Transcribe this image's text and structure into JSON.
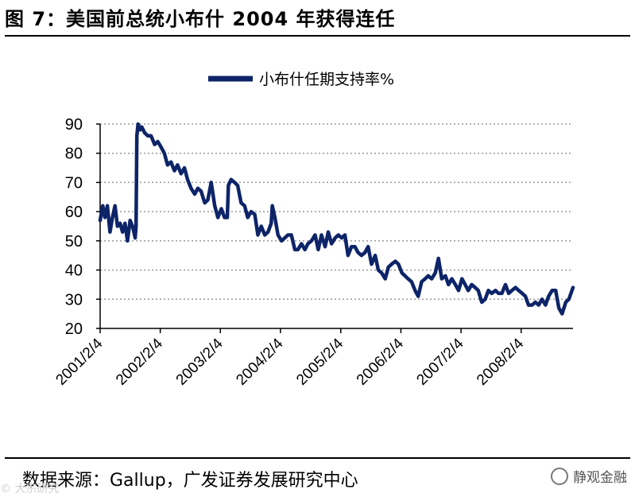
{
  "figure": {
    "title": "图 7：美国前总统小布什 2004 年获得连任",
    "source": "数据来源：Gallup，广发证券发展研究中心",
    "watermark": "静观金融",
    "corner_watermark": "© 大宗研究"
  },
  "colors": {
    "line": "#0d2468",
    "grid": "#9a9a9a",
    "axis": "#000000"
  },
  "chart_data": {
    "type": "line",
    "title": "",
    "xlabel": "",
    "ylabel": "",
    "ylim": [
      20,
      90
    ],
    "yticks": [
      20,
      30,
      40,
      50,
      60,
      70,
      80,
      90
    ],
    "xlim": [
      "2001/2/4",
      "2008/12/15"
    ],
    "xticks": [
      "2001/2/4",
      "2002/2/4",
      "2003/2/4",
      "2004/2/4",
      "2005/2/4",
      "2006/2/4",
      "2007/2/4",
      "2008/2/4"
    ],
    "grid": "horizontal dotted",
    "legend": {
      "position": "top-center",
      "entries": [
        "小布什任期支持率%"
      ]
    },
    "series": [
      {
        "name": "小布什任期支持率%",
        "points": [
          [
            "2001/2/4",
            57
          ],
          [
            "2001/2/20",
            62
          ],
          [
            "2001/3/5",
            58
          ],
          [
            "2001/3/20",
            62
          ],
          [
            "2001/4/5",
            53
          ],
          [
            "2001/4/20",
            58
          ],
          [
            "2001/5/5",
            62
          ],
          [
            "2001/5/20",
            55
          ],
          [
            "2001/6/5",
            56
          ],
          [
            "2001/6/20",
            53
          ],
          [
            "2001/7/5",
            56
          ],
          [
            "2001/7/20",
            50
          ],
          [
            "2001/8/5",
            57
          ],
          [
            "2001/8/20",
            55
          ],
          [
            "2001/9/5",
            51
          ],
          [
            "2001/9/10",
            55
          ],
          [
            "2001/9/15",
            86
          ],
          [
            "2001/9/22",
            90
          ],
          [
            "2001/10/5",
            88
          ],
          [
            "2001/10/15",
            89
          ],
          [
            "2001/11/1",
            87
          ],
          [
            "2001/11/20",
            86
          ],
          [
            "2001/12/10",
            86
          ],
          [
            "2002/1/1",
            83
          ],
          [
            "2002/1/20",
            84
          ],
          [
            "2002/2/10",
            82
          ],
          [
            "2002/3/1",
            80
          ],
          [
            "2002/3/20",
            76
          ],
          [
            "2002/4/10",
            77
          ],
          [
            "2002/5/1",
            74
          ],
          [
            "2002/5/20",
            76
          ],
          [
            "2002/6/10",
            73
          ],
          [
            "2002/7/1",
            75
          ],
          [
            "2002/7/20",
            71
          ],
          [
            "2002/8/10",
            68
          ],
          [
            "2002/9/1",
            66
          ],
          [
            "2002/9/20",
            68
          ],
          [
            "2002/10/10",
            67
          ],
          [
            "2002/11/1",
            63
          ],
          [
            "2002/11/20",
            64
          ],
          [
            "2002/12/10",
            70
          ],
          [
            "2003/1/1",
            62
          ],
          [
            "2003/1/20",
            58
          ],
          [
            "2003/2/10",
            61
          ],
          [
            "2003/3/1",
            58
          ],
          [
            "2003/3/18",
            58
          ],
          [
            "2003/3/25",
            69
          ],
          [
            "2003/4/10",
            71
          ],
          [
            "2003/5/1",
            70
          ],
          [
            "2003/5/20",
            69
          ],
          [
            "2003/6/10",
            63
          ],
          [
            "2003/7/1",
            62
          ],
          [
            "2003/7/20",
            58
          ],
          [
            "2003/8/10",
            60
          ],
          [
            "2003/9/1",
            59
          ],
          [
            "2003/9/20",
            52
          ],
          [
            "2003/10/10",
            55
          ],
          [
            "2003/11/1",
            52
          ],
          [
            "2003/11/20",
            53
          ],
          [
            "2003/12/10",
            56
          ],
          [
            "2003/12/16",
            62
          ],
          [
            "2004/1/1",
            58
          ],
          [
            "2004/1/20",
            52
          ],
          [
            "2004/2/10",
            50
          ],
          [
            "2004/3/1",
            51
          ],
          [
            "2004/3/20",
            52
          ],
          [
            "2004/4/10",
            52
          ],
          [
            "2004/5/1",
            47
          ],
          [
            "2004/5/20",
            47
          ],
          [
            "2004/6/10",
            49
          ],
          [
            "2004/7/1",
            47
          ],
          [
            "2004/7/20",
            49
          ],
          [
            "2004/8/10",
            50
          ],
          [
            "2004/9/1",
            52
          ],
          [
            "2004/9/20",
            47
          ],
          [
            "2004/10/10",
            52
          ],
          [
            "2004/11/1",
            48
          ],
          [
            "2004/11/20",
            53
          ],
          [
            "2004/12/10",
            49
          ],
          [
            "2005/1/1",
            51
          ],
          [
            "2005/1/20",
            52
          ],
          [
            "2005/2/10",
            51
          ],
          [
            "2005/3/1",
            52
          ],
          [
            "2005/3/20",
            45
          ],
          [
            "2005/4/10",
            48
          ],
          [
            "2005/5/1",
            48
          ],
          [
            "2005/5/20",
            46
          ],
          [
            "2005/6/10",
            45
          ],
          [
            "2005/7/1",
            46
          ],
          [
            "2005/7/20",
            48
          ],
          [
            "2005/8/10",
            42
          ],
          [
            "2005/9/1",
            45
          ],
          [
            "2005/9/20",
            40
          ],
          [
            "2005/10/10",
            39
          ],
          [
            "2005/11/1",
            37
          ],
          [
            "2005/11/20",
            41
          ],
          [
            "2005/12/10",
            42
          ],
          [
            "2006/1/1",
            43
          ],
          [
            "2006/1/20",
            42
          ],
          [
            "2006/2/10",
            39
          ],
          [
            "2006/3/1",
            38
          ],
          [
            "2006/3/20",
            37
          ],
          [
            "2006/4/10",
            36
          ],
          [
            "2006/5/1",
            33
          ],
          [
            "2006/5/20",
            31
          ],
          [
            "2006/6/10",
            36
          ],
          [
            "2006/7/1",
            37
          ],
          [
            "2006/7/20",
            38
          ],
          [
            "2006/8/10",
            37
          ],
          [
            "2006/9/1",
            39
          ],
          [
            "2006/9/20",
            44
          ],
          [
            "2006/10/10",
            37
          ],
          [
            "2006/11/1",
            38
          ],
          [
            "2006/11/20",
            35
          ],
          [
            "2006/12/10",
            37
          ],
          [
            "2007/1/1",
            35
          ],
          [
            "2007/1/20",
            33
          ],
          [
            "2007/2/10",
            37
          ],
          [
            "2007/3/1",
            35
          ],
          [
            "2007/3/20",
            33
          ],
          [
            "2007/4/10",
            35
          ],
          [
            "2007/5/1",
            34
          ],
          [
            "2007/5/20",
            33
          ],
          [
            "2007/6/10",
            29
          ],
          [
            "2007/7/1",
            30
          ],
          [
            "2007/7/20",
            33
          ],
          [
            "2007/8/10",
            32
          ],
          [
            "2007/9/1",
            33
          ],
          [
            "2007/9/20",
            32
          ],
          [
            "2007/10/10",
            32
          ],
          [
            "2007/11/1",
            35
          ],
          [
            "2007/11/20",
            32
          ],
          [
            "2007/12/10",
            33
          ],
          [
            "2008/1/1",
            34
          ],
          [
            "2008/1/20",
            33
          ],
          [
            "2008/2/10",
            32
          ],
          [
            "2008/3/1",
            31
          ],
          [
            "2008/3/20",
            28
          ],
          [
            "2008/4/10",
            28
          ],
          [
            "2008/5/1",
            29
          ],
          [
            "2008/5/20",
            28
          ],
          [
            "2008/6/10",
            30
          ],
          [
            "2008/7/1",
            28
          ],
          [
            "2008/7/20",
            31
          ],
          [
            "2008/8/10",
            33
          ],
          [
            "2008/9/1",
            33
          ],
          [
            "2008/9/20",
            27
          ],
          [
            "2008/10/10",
            25
          ],
          [
            "2008/11/1",
            29
          ],
          [
            "2008/11/20",
            30
          ],
          [
            "2008/12/15",
            34
          ]
        ]
      }
    ]
  }
}
